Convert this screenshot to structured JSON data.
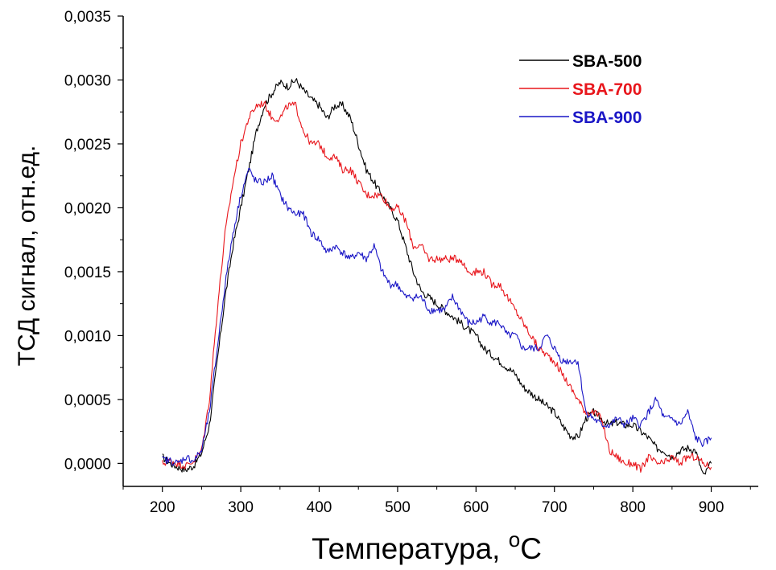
{
  "chart_data": {
    "type": "line",
    "xlabel": "Температура, ",
    "xlabel_sup": "o",
    "xlabel_unit": "C",
    "ylabel": "ТСД сигнал, отн.ед.",
    "xlim": [
      150,
      960
    ],
    "ylim": [
      -0.00018,
      0.0035
    ],
    "xticks": [
      200,
      300,
      400,
      500,
      600,
      700,
      800,
      900
    ],
    "xtick_labels": [
      "200",
      "300",
      "400",
      "500",
      "600",
      "700",
      "800",
      "900"
    ],
    "yticks": [
      0.0,
      0.0005,
      0.001,
      0.0015,
      0.002,
      0.0025,
      0.003,
      0.0035
    ],
    "ytick_labels": [
      "0,0000",
      "0,0005",
      "0,0010",
      "0,0015",
      "0,0020",
      "0,0025",
      "0,0030",
      "0,0035"
    ],
    "legend_position": "top-right",
    "grid": false,
    "series": [
      {
        "name": "SBA-500",
        "color": "#000000",
        "x": [
          200,
          210,
          220,
          230,
          240,
          250,
          260,
          270,
          280,
          290,
          300,
          310,
          320,
          330,
          340,
          350,
          360,
          370,
          380,
          390,
          400,
          410,
          420,
          430,
          440,
          450,
          460,
          470,
          480,
          490,
          500,
          510,
          520,
          530,
          540,
          550,
          560,
          570,
          580,
          590,
          600,
          610,
          620,
          630,
          640,
          650,
          660,
          670,
          680,
          690,
          700,
          710,
          720,
          730,
          740,
          750,
          760,
          770,
          780,
          790,
          800,
          810,
          820,
          830,
          840,
          850,
          860,
          870,
          880,
          890,
          900
        ],
        "y": [
          5e-05,
          0.0,
          -3e-05,
          -5e-05,
          -2e-05,
          8e-05,
          0.0003,
          0.0008,
          0.0013,
          0.0017,
          0.002,
          0.0023,
          0.0026,
          0.0028,
          0.0029,
          0.00298,
          0.00295,
          0.003,
          0.00292,
          0.00285,
          0.0028,
          0.0027,
          0.0028,
          0.0028,
          0.0027,
          0.0025,
          0.0023,
          0.0022,
          0.0021,
          0.002,
          0.0019,
          0.0017,
          0.0015,
          0.00135,
          0.0013,
          0.00125,
          0.0012,
          0.00115,
          0.0011,
          0.00105,
          0.001,
          0.0009,
          0.00085,
          0.0008,
          0.00075,
          0.0007,
          0.0006,
          0.00055,
          0.0005,
          0.00045,
          0.0004,
          0.0003,
          0.00022,
          0.0002,
          0.00035,
          0.0004,
          0.00035,
          0.0003,
          0.00032,
          0.0003,
          0.0003,
          0.00025,
          0.0002,
          0.00012,
          0.0001,
          5e-05,
          0.0001,
          0.00012,
          0.0001,
          -0.0001,
          0.0
        ]
      },
      {
        "name": "SBA-700",
        "color": "#e8161c",
        "x": [
          200,
          210,
          220,
          230,
          240,
          250,
          260,
          270,
          280,
          290,
          300,
          310,
          320,
          330,
          340,
          350,
          360,
          370,
          380,
          390,
          400,
          410,
          420,
          430,
          440,
          450,
          460,
          470,
          480,
          490,
          500,
          510,
          520,
          530,
          540,
          550,
          560,
          570,
          580,
          590,
          600,
          610,
          620,
          630,
          640,
          650,
          660,
          670,
          680,
          690,
          700,
          710,
          720,
          730,
          740,
          750,
          760,
          770,
          780,
          790,
          800,
          810,
          820,
          830,
          840,
          850,
          860,
          870,
          880,
          890,
          900
        ],
        "y": [
          0.0,
          2e-05,
          0.0,
          -2e-05,
          2e-05,
          0.0001,
          0.0005,
          0.0012,
          0.0018,
          0.0022,
          0.0025,
          0.0027,
          0.0028,
          0.00282,
          0.0027,
          0.0027,
          0.0028,
          0.0028,
          0.0026,
          0.0025,
          0.0025,
          0.0024,
          0.0024,
          0.0023,
          0.0023,
          0.0022,
          0.0021,
          0.0021,
          0.0021,
          0.002,
          0.002,
          0.0019,
          0.0017,
          0.0017,
          0.0016,
          0.0016,
          0.0016,
          0.0016,
          0.0016,
          0.0015,
          0.0015,
          0.0015,
          0.0014,
          0.0014,
          0.0013,
          0.0012,
          0.0011,
          0.001,
          0.0009,
          0.00085,
          0.0008,
          0.0007,
          0.0006,
          0.0005,
          0.0004,
          0.0004,
          0.00035,
          0.0001,
          5e-05,
          0.0,
          0.0,
          -5e-05,
          5e-05,
          0.0,
          0.0,
          5e-05,
          0.0,
          5e-05,
          5e-05,
          0.0,
          -3e-05
        ]
      },
      {
        "name": "SBA-900",
        "color": "#1a16c6",
        "x": [
          200,
          210,
          220,
          230,
          240,
          250,
          260,
          270,
          280,
          290,
          300,
          310,
          320,
          330,
          340,
          350,
          360,
          370,
          380,
          390,
          400,
          410,
          420,
          430,
          440,
          450,
          460,
          470,
          480,
          490,
          500,
          510,
          520,
          530,
          540,
          550,
          560,
          570,
          580,
          590,
          600,
          610,
          620,
          630,
          640,
          650,
          660,
          670,
          680,
          690,
          700,
          710,
          720,
          730,
          740,
          750,
          760,
          770,
          780,
          790,
          800,
          810,
          820,
          830,
          840,
          850,
          860,
          870,
          880,
          890,
          900
        ],
        "y": [
          3e-05,
          2e-05,
          0.0,
          5e-05,
          2e-05,
          0.0001,
          0.0004,
          0.0009,
          0.0014,
          0.0018,
          0.0021,
          0.0023,
          0.0022,
          0.0022,
          0.00225,
          0.0021,
          0.002,
          0.00195,
          0.00195,
          0.0018,
          0.00175,
          0.00165,
          0.0017,
          0.00165,
          0.0016,
          0.00165,
          0.0016,
          0.0017,
          0.0015,
          0.0014,
          0.0014,
          0.0013,
          0.0013,
          0.0013,
          0.0012,
          0.0012,
          0.0012,
          0.0013,
          0.0012,
          0.0011,
          0.0011,
          0.00115,
          0.0011,
          0.0011,
          0.001,
          0.001,
          0.0009,
          0.0009,
          0.0009,
          0.001,
          0.0009,
          0.0008,
          0.0008,
          0.0008,
          0.0004,
          0.00035,
          0.0003,
          0.0003,
          0.00035,
          0.0003,
          0.00035,
          0.0003,
          0.0004,
          0.0005,
          0.00035,
          0.00035,
          0.0003,
          0.0004,
          0.0002,
          0.00015,
          0.0002
        ]
      }
    ]
  }
}
